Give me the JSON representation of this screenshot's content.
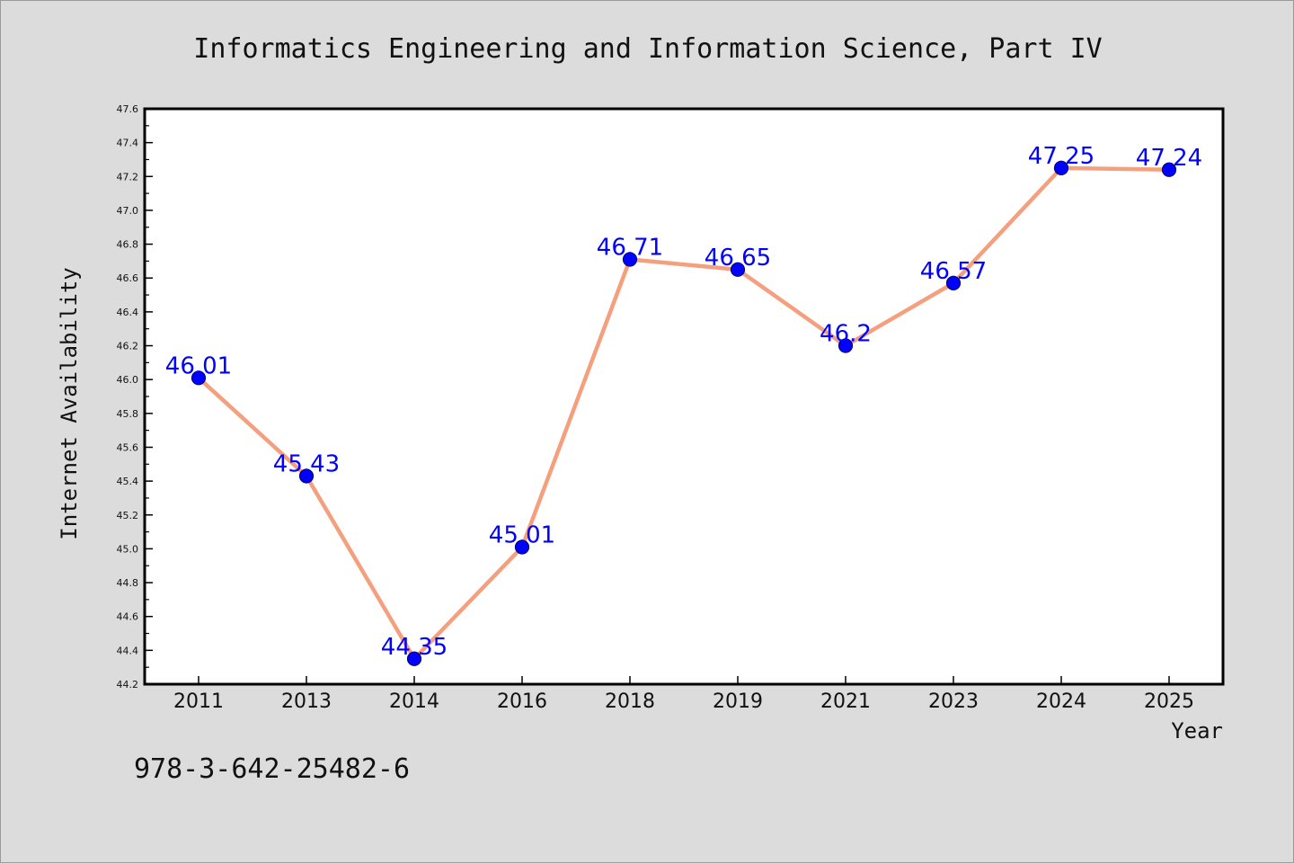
{
  "chart_data": {
    "type": "line",
    "title": "Informatics Engineering and Information Science, Part IV",
    "xlabel": "Year",
    "ylabel": "Internet Availability",
    "categories": [
      "2011",
      "2013",
      "2014",
      "2016",
      "2018",
      "2019",
      "2021",
      "2023",
      "2024",
      "2025"
    ],
    "series": [
      {
        "values": [
          46.01,
          45.43,
          44.35,
          45.01,
          46.71,
          46.65,
          46.2,
          46.57,
          47.25,
          47.24
        ],
        "data_labels": [
          "46.01",
          "45.43",
          "44.35",
          "45.01",
          "46.71",
          "46.65",
          "46.2",
          "46.57",
          "47.25",
          "47.24"
        ]
      }
    ],
    "ylim": [
      44.2,
      47.6
    ],
    "yticks": [
      "44.2",
      "44.4",
      "44.6",
      "44.8",
      "45.0",
      "45.2",
      "45.4",
      "45.6",
      "45.8",
      "46.0",
      "46.2",
      "46.4",
      "46.6",
      "46.8",
      "47.0",
      "47.2",
      "47.4",
      "47.6"
    ],
    "grid": false,
    "legend": "none",
    "colors": {
      "line": "#f4a07f",
      "marker": "#0000ff",
      "marker_edge": "#00007a",
      "label": "#0000ff",
      "plot_background": "#ffffff",
      "figure_background": "#dcdcdc"
    }
  },
  "footnote": "978-3-642-25482-6"
}
